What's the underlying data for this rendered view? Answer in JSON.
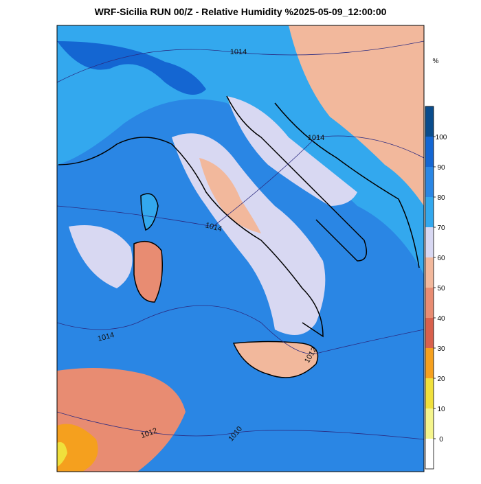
{
  "title": "WRF-Sicilia RUN 00/Z - Relative Humidity %2025-05-09_12:00:00",
  "colorbar": {
    "unit": "%",
    "ticks": [
      0,
      10,
      20,
      30,
      40,
      50,
      60,
      70,
      80,
      90,
      100
    ],
    "colors": [
      "#ffffff",
      "#f5f58c",
      "#f0e03c",
      "#f5a01e",
      "#d8604c",
      "#e88c72",
      "#f2b89c",
      "#d8d8f2",
      "#33a8ee",
      "#2a86e4",
      "#1466d2",
      "#0a4c8c"
    ]
  },
  "contour_labels": [
    "1014",
    "1014",
    "1014",
    "1014",
    "1012",
    "1012",
    "1010"
  ]
}
